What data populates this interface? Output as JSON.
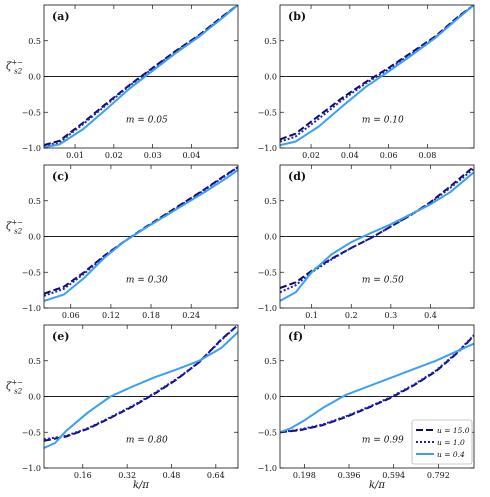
{
  "chart_data": [
    {
      "panel": "(a)",
      "annotation": "m = 0.05",
      "type": "line",
      "xlim": [
        0.002,
        0.052
      ],
      "ylim": [
        -1.0,
        1.0
      ],
      "xticks": [
        0.01,
        0.02,
        0.03,
        0.04
      ],
      "xticklabels": [
        "0.01",
        "0.02",
        "0.03",
        "0.04"
      ],
      "yticks": [
        -1.0,
        -0.5,
        0.0,
        0.5
      ],
      "yticklabels": [
        "−1.0",
        "−0.5",
        "0.0",
        "0.5"
      ],
      "series": [
        {
          "name": "u = 15.0",
          "x": [
            0.002,
            0.006,
            0.012,
            0.018,
            0.024,
            0.03,
            0.036,
            0.042,
            0.048,
            0.052
          ],
          "y": [
            -0.96,
            -0.9,
            -0.65,
            -0.38,
            -0.12,
            0.12,
            0.36,
            0.58,
            0.84,
            1.0
          ]
        },
        {
          "name": "u = 1.0",
          "x": [
            0.002,
            0.006,
            0.012,
            0.018,
            0.024,
            0.03,
            0.036,
            0.042,
            0.048,
            0.052
          ],
          "y": [
            -0.97,
            -0.92,
            -0.67,
            -0.4,
            -0.13,
            0.11,
            0.35,
            0.57,
            0.83,
            1.0
          ]
        },
        {
          "name": "u = 0.4",
          "x": [
            0.002,
            0.006,
            0.012,
            0.018,
            0.024,
            0.03,
            0.036,
            0.042,
            0.048,
            0.052
          ],
          "y": [
            -0.99,
            -0.95,
            -0.74,
            -0.46,
            -0.17,
            0.08,
            0.33,
            0.56,
            0.82,
            1.0
          ]
        }
      ]
    },
    {
      "panel": "(b)",
      "annotation": "m = 0.10",
      "type": "line",
      "xlim": [
        0.004,
        0.104
      ],
      "ylim": [
        -1.0,
        1.0
      ],
      "xticks": [
        0.02,
        0.04,
        0.06,
        0.08
      ],
      "xticklabels": [
        "0.02",
        "0.04",
        "0.06",
        "0.08"
      ],
      "yticks": [
        -1.0,
        -0.5,
        0.0,
        0.5
      ],
      "yticklabels": [
        "−1.0",
        "−0.5",
        "0.0",
        "0.5"
      ],
      "series": [
        {
          "name": "u = 15.0",
          "x": [
            0.004,
            0.012,
            0.024,
            0.036,
            0.048,
            0.06,
            0.072,
            0.084,
            0.096,
            0.104
          ],
          "y": [
            -0.88,
            -0.8,
            -0.55,
            -0.3,
            -0.08,
            0.12,
            0.34,
            0.56,
            0.84,
            1.0
          ]
        },
        {
          "name": "u = 1.0",
          "x": [
            0.004,
            0.012,
            0.024,
            0.036,
            0.048,
            0.06,
            0.072,
            0.084,
            0.096,
            0.104
          ],
          "y": [
            -0.91,
            -0.84,
            -0.59,
            -0.33,
            -0.1,
            0.1,
            0.32,
            0.55,
            0.83,
            1.0
          ]
        },
        {
          "name": "u = 0.4",
          "x": [
            0.004,
            0.012,
            0.024,
            0.036,
            0.048,
            0.06,
            0.072,
            0.084,
            0.096,
            0.104
          ],
          "y": [
            -0.96,
            -0.91,
            -0.7,
            -0.42,
            -0.15,
            0.07,
            0.3,
            0.54,
            0.82,
            1.0
          ]
        }
      ]
    },
    {
      "panel": "(c)",
      "annotation": "m = 0.30",
      "type": "line",
      "xlim": [
        0.02,
        0.31
      ],
      "ylim": [
        -1.0,
        1.0
      ],
      "xticks": [
        0.06,
        0.12,
        0.18,
        0.24
      ],
      "xticklabels": [
        "0.06",
        "0.12",
        "0.18",
        "0.24"
      ],
      "yticks": [
        -1.0,
        -0.5,
        0.0,
        0.5
      ],
      "yticklabels": [
        "−1.0",
        "−0.5",
        "0.0",
        "0.5"
      ],
      "series": [
        {
          "name": "u = 15.0",
          "x": [
            0.02,
            0.05,
            0.08,
            0.11,
            0.14,
            0.17,
            0.2,
            0.23,
            0.26,
            0.29,
            0.31
          ],
          "y": [
            -0.8,
            -0.7,
            -0.5,
            -0.27,
            -0.07,
            0.12,
            0.3,
            0.48,
            0.66,
            0.85,
            0.97
          ]
        },
        {
          "name": "u = 1.0",
          "x": [
            0.02,
            0.05,
            0.08,
            0.11,
            0.14,
            0.17,
            0.2,
            0.23,
            0.26,
            0.29,
            0.31
          ],
          "y": [
            -0.83,
            -0.73,
            -0.52,
            -0.28,
            -0.07,
            0.11,
            0.29,
            0.47,
            0.65,
            0.84,
            0.97
          ]
        },
        {
          "name": "u = 0.4",
          "x": [
            0.02,
            0.05,
            0.08,
            0.11,
            0.14,
            0.17,
            0.2,
            0.23,
            0.26,
            0.29,
            0.31
          ],
          "y": [
            -0.9,
            -0.81,
            -0.58,
            -0.3,
            -0.07,
            0.11,
            0.28,
            0.45,
            0.62,
            0.8,
            0.93
          ]
        }
      ]
    },
    {
      "panel": "(d)",
      "annotation": "m = 0.50",
      "type": "line",
      "xlim": [
        0.02,
        0.51
      ],
      "ylim": [
        -1.0,
        1.0
      ],
      "xticks": [
        0.1,
        0.2,
        0.3,
        0.4
      ],
      "xticklabels": [
        "0.1",
        "0.2",
        "0.3",
        "0.4"
      ],
      "yticks": [
        -1.0,
        -0.5,
        0.0,
        0.5
      ],
      "yticklabels": [
        "−1.0",
        "−0.5",
        "0.0",
        "0.5"
      ],
      "series": [
        {
          "name": "u = 15.0",
          "x": [
            0.02,
            0.06,
            0.1,
            0.15,
            0.2,
            0.25,
            0.3,
            0.35,
            0.4,
            0.45,
            0.51
          ],
          "y": [
            -0.72,
            -0.64,
            -0.48,
            -0.31,
            -0.16,
            -0.02,
            0.14,
            0.3,
            0.48,
            0.7,
            0.98
          ]
        },
        {
          "name": "u = 1.0",
          "x": [
            0.02,
            0.06,
            0.1,
            0.15,
            0.2,
            0.25,
            0.3,
            0.35,
            0.4,
            0.45,
            0.51
          ],
          "y": [
            -0.78,
            -0.68,
            -0.5,
            -0.32,
            -0.16,
            -0.02,
            0.14,
            0.3,
            0.47,
            0.68,
            0.95
          ]
        },
        {
          "name": "u = 0.4",
          "x": [
            0.02,
            0.06,
            0.1,
            0.15,
            0.2,
            0.25,
            0.3,
            0.35,
            0.4,
            0.45,
            0.51
          ],
          "y": [
            -0.9,
            -0.78,
            -0.5,
            -0.25,
            -0.08,
            0.05,
            0.17,
            0.31,
            0.45,
            0.62,
            0.9
          ]
        }
      ]
    },
    {
      "panel": "(e)",
      "annotation": "m = 0.80",
      "type": "line",
      "xlim": [
        0.02,
        0.72
      ],
      "ylim": [
        -1.0,
        1.0
      ],
      "xticks": [
        0.16,
        0.32,
        0.48,
        0.64
      ],
      "xticklabels": [
        "0.16",
        "0.32",
        "0.48",
        "0.64"
      ],
      "yticks": [
        -1.0,
        -0.5,
        0.0,
        0.5
      ],
      "yticklabels": [
        "−1.0",
        "−0.5",
        "0.0",
        "0.5"
      ],
      "series": [
        {
          "name": "u = 15.0",
          "x": [
            0.02,
            0.1,
            0.18,
            0.26,
            0.34,
            0.42,
            0.5,
            0.58,
            0.66,
            0.72
          ],
          "y": [
            -0.62,
            -0.56,
            -0.45,
            -0.3,
            -0.14,
            0.04,
            0.24,
            0.48,
            0.8,
            1.0
          ]
        },
        {
          "name": "u = 1.0",
          "x": [
            0.02,
            0.1,
            0.18,
            0.26,
            0.34,
            0.42,
            0.5,
            0.58,
            0.66,
            0.72
          ],
          "y": [
            -0.6,
            -0.55,
            -0.44,
            -0.29,
            -0.13,
            0.05,
            0.25,
            0.48,
            0.79,
            1.0
          ]
        },
        {
          "name": "u = 0.4",
          "x": [
            0.02,
            0.06,
            0.1,
            0.18,
            0.26,
            0.34,
            0.42,
            0.5,
            0.58,
            0.66,
            0.72
          ],
          "y": [
            -0.72,
            -0.65,
            -0.48,
            -0.22,
            0.0,
            0.14,
            0.27,
            0.38,
            0.5,
            0.68,
            0.9
          ]
        }
      ]
    },
    {
      "panel": "(f)",
      "annotation": "m = 0.99",
      "type": "line",
      "xlim": [
        0.09,
        0.95
      ],
      "ylim": [
        -1.0,
        1.0
      ],
      "xticks": [
        0.198,
        0.396,
        0.594,
        0.792
      ],
      "xticklabels": [
        "0.198",
        "0.396",
        "0.594",
        "0.792"
      ],
      "yticks": [
        -1.0,
        -0.5,
        0.0,
        0.5
      ],
      "yticklabels": [
        "−1.0",
        "−0.5",
        "0.0",
        "0.5"
      ],
      "series": [
        {
          "name": "u = 15.0",
          "x": [
            0.09,
            0.18,
            0.28,
            0.38,
            0.48,
            0.58,
            0.68,
            0.78,
            0.88,
            0.95
          ],
          "y": [
            -0.5,
            -0.47,
            -0.4,
            -0.29,
            -0.16,
            -0.02,
            0.15,
            0.35,
            0.62,
            0.85
          ]
        },
        {
          "name": "u = 1.0",
          "x": [
            0.09,
            0.18,
            0.28,
            0.38,
            0.48,
            0.58,
            0.68,
            0.78,
            0.88,
            0.95
          ],
          "y": [
            -0.5,
            -0.46,
            -0.39,
            -0.28,
            -0.15,
            -0.01,
            0.16,
            0.36,
            0.63,
            0.86
          ]
        },
        {
          "name": "u = 0.4",
          "x": [
            0.09,
            0.14,
            0.2,
            0.28,
            0.38,
            0.48,
            0.58,
            0.68,
            0.78,
            0.88,
            0.95
          ],
          "y": [
            -0.5,
            -0.44,
            -0.33,
            -0.16,
            0.02,
            0.14,
            0.26,
            0.38,
            0.5,
            0.64,
            0.74
          ]
        }
      ]
    }
  ],
  "ylabel": "ζ",
  "ylabel_sub": "s2",
  "ylabel_sup": "+−",
  "xlabel": "k/π",
  "legend": {
    "items": [
      "u = 15.0",
      "u = 1.0",
      "u = 0.4"
    ],
    "placement": "lower-right of panel (f)"
  },
  "series_style": {
    "u = 15.0": {
      "color": "#0b0b6b",
      "dash": "7,3"
    },
    "u = 1.0": {
      "color": "#1f1fbf",
      "dash": "2,2"
    },
    "u = 0.4": {
      "color": "#3aa0f0",
      "dash": ""
    }
  }
}
